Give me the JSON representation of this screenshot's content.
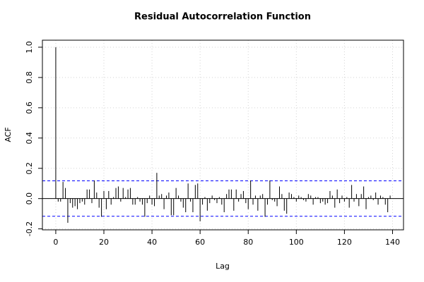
{
  "chart_data": {
    "type": "acf",
    "title": "Residual Autocorrelation Function",
    "x_label": "Lag",
    "y_label": "ACF",
    "x": [
      0,
      1,
      2,
      3,
      4,
      5,
      6,
      7,
      8,
      9,
      10,
      11,
      12,
      13,
      14,
      15,
      16,
      17,
      18,
      19,
      20,
      21,
      22,
      23,
      24,
      25,
      26,
      27,
      28,
      29,
      30,
      31,
      32,
      33,
      34,
      35,
      36,
      37,
      38,
      39,
      40,
      41,
      42,
      43,
      44,
      45,
      46,
      47,
      48,
      49,
      50,
      51,
      52,
      53,
      54,
      55,
      56,
      57,
      58,
      59,
      60,
      61,
      62,
      63,
      64,
      65,
      66,
      67,
      68,
      69,
      70,
      71,
      72,
      73,
      74,
      75,
      76,
      77,
      78,
      79,
      80,
      81,
      82,
      83,
      84,
      85,
      86,
      87,
      88,
      89,
      90,
      91,
      92,
      93,
      94,
      95,
      96,
      97,
      98,
      99,
      100,
      101,
      102,
      103,
      104,
      105,
      106,
      107,
      108,
      109,
      110,
      111,
      112,
      113,
      114,
      115,
      116,
      117,
      118,
      119,
      120,
      121,
      122,
      123,
      124,
      125,
      126,
      127,
      128,
      129,
      130,
      131,
      132,
      133,
      134,
      135,
      136,
      137,
      138,
      139
    ],
    "values": [
      1.0,
      -0.02,
      -0.02,
      0.11,
      0.07,
      -0.16,
      -0.03,
      -0.06,
      -0.05,
      -0.07,
      -0.03,
      -0.02,
      -0.04,
      0.06,
      0.06,
      -0.03,
      0.12,
      0.04,
      -0.06,
      -0.12,
      0.05,
      -0.07,
      0.05,
      -0.04,
      0.01,
      0.07,
      0.08,
      -0.02,
      0.07,
      0.01,
      0.06,
      0.07,
      -0.04,
      -0.04,
      0.01,
      -0.02,
      -0.04,
      -0.12,
      -0.03,
      0.02,
      -0.04,
      -0.05,
      0.17,
      0.02,
      0.03,
      -0.07,
      0.02,
      0.04,
      -0.11,
      -0.11,
      0.07,
      0.02,
      -0.02,
      -0.06,
      -0.09,
      0.1,
      -0.02,
      -0.09,
      0.09,
      0.1,
      -0.15,
      -0.04,
      0.01,
      -0.08,
      -0.03,
      0.02,
      -0.01,
      -0.03,
      0.01,
      -0.04,
      -0.09,
      0.03,
      0.06,
      0.06,
      -0.08,
      0.06,
      -0.02,
      0.03,
      0.05,
      -0.03,
      -0.07,
      0.12,
      -0.04,
      0.02,
      -0.08,
      0.02,
      0.03,
      -0.12,
      -0.04,
      0.12,
      -0.01,
      -0.02,
      -0.05,
      0.08,
      0.03,
      -0.08,
      -0.1,
      0.04,
      0.03,
      0.01,
      -0.02,
      0.02,
      0.01,
      -0.01,
      -0.02,
      0.03,
      0.02,
      -0.04,
      0.01,
      0.01,
      -0.03,
      -0.02,
      -0.04,
      -0.03,
      0.05,
      0.02,
      -0.06,
      0.06,
      -0.03,
      0.02,
      -0.02,
      0.01,
      -0.06,
      0.09,
      -0.02,
      0.03,
      -0.05,
      0.03,
      0.08,
      -0.07,
      0.01,
      0.02,
      -0.01,
      0.04,
      -0.04,
      0.02,
      0.01,
      -0.04,
      -0.09,
      0.02
    ],
    "color": "#000000",
    "conf_limits": [
      0.117,
      -0.117
    ],
    "conf_color": "#0000ff",
    "xlim": [
      -5.56,
      144.56
    ],
    "ylim": [
      -0.2064,
      1.0464
    ],
    "xticks": [
      0,
      20,
      40,
      60,
      80,
      100,
      120,
      140
    ],
    "yticks": [
      -0.2,
      {
        "value": 0,
        "label": "0.0"
      },
      0.2,
      0.4,
      0.6,
      0.8,
      {
        "value": 1,
        "label": "1.0"
      }
    ],
    "grid": true
  }
}
